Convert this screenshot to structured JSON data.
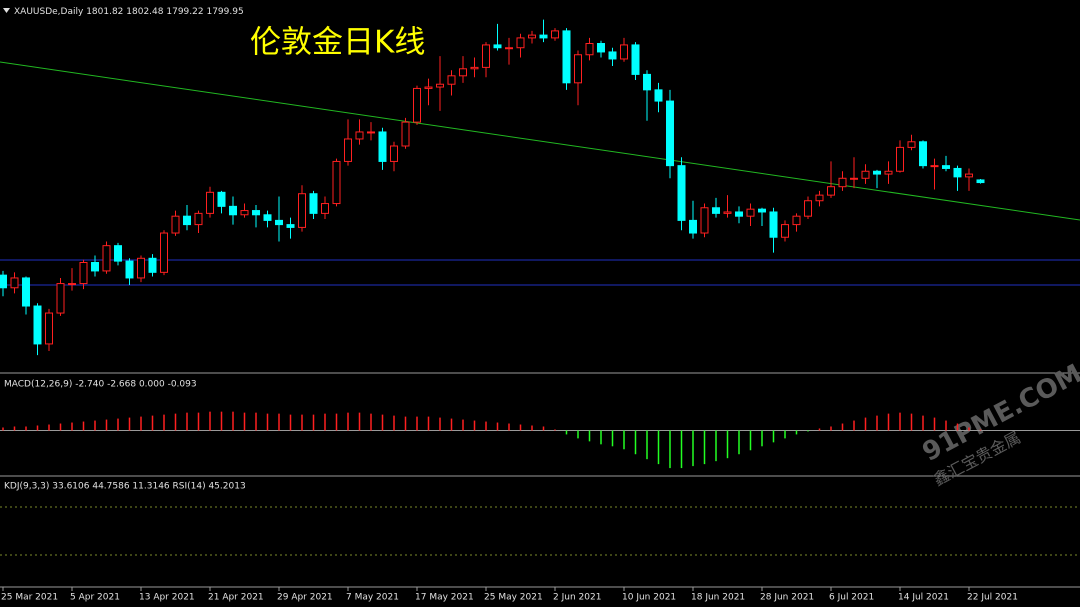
{
  "chart_data": [
    {
      "type": "candlestick",
      "title": "伦敦金日K线",
      "symbol": "XAUUSDe,Daily",
      "categories": [
        "25 Mar 2021",
        null,
        null,
        null,
        null,
        null,
        "5 Apr 2021",
        null,
        null,
        null,
        null,
        null,
        "13 Apr 2021",
        null,
        null,
        null,
        null,
        null,
        "21 Apr 2021",
        null,
        null,
        null,
        null,
        null,
        "29 Apr 2021",
        null,
        null,
        null,
        null,
        null,
        "7 May 2021",
        null,
        null,
        null,
        null,
        null,
        "17 May 2021",
        null,
        null,
        null,
        null,
        null,
        "25 May 2021",
        null,
        null,
        null,
        null,
        null,
        "2 Jun 2021",
        null,
        null,
        null,
        null,
        null,
        "10 Jun 2021",
        null,
        null,
        null,
        null,
        null,
        "18 Jun 2021",
        null,
        null,
        null,
        null,
        null,
        "28 Jun 2021",
        null,
        null,
        null,
        null,
        null,
        "6 Jul 2021",
        null,
        null,
        null,
        null,
        null,
        "14 Jul 2021",
        null,
        null,
        null,
        null,
        null,
        "22 Jul 2021",
        null
      ],
      "open": [
        1734,
        1725,
        1732,
        1712,
        1685,
        1707,
        1728,
        1728,
        1743,
        1737,
        1755,
        1744,
        1732,
        1746,
        1736,
        1764,
        1776,
        1770,
        1778,
        1793,
        1783,
        1777,
        1780,
        1777,
        1773,
        1770,
        1768,
        1792,
        1778,
        1785,
        1815,
        1831,
        1836,
        1836,
        1815,
        1826,
        1843,
        1867,
        1868,
        1870,
        1876,
        1881,
        1882,
        1898,
        1896,
        1896,
        1903,
        1905,
        1903,
        1908,
        1871,
        1891,
        1899,
        1893,
        1888,
        1898,
        1877,
        1866,
        1858,
        1812,
        1773,
        1764,
        1782,
        1778,
        1779,
        1776,
        1781,
        1779,
        1761,
        1770,
        1776,
        1787,
        1791,
        1797,
        1803,
        1803,
        1808,
        1806,
        1808,
        1825,
        1829,
        1812,
        1812,
        1810,
        1804,
        1801.82
      ],
      "high": [
        1737,
        1736,
        1733,
        1714,
        1710,
        1732,
        1739,
        1745,
        1748,
        1758,
        1757,
        1746,
        1748,
        1749,
        1766,
        1780,
        1784,
        1780,
        1797,
        1794,
        1790,
        1785,
        1784,
        1780,
        1790,
        1775,
        1798,
        1794,
        1790,
        1817,
        1845,
        1845,
        1843,
        1839,
        1829,
        1846,
        1869,
        1874,
        1890,
        1880,
        1890,
        1889,
        1900,
        1913,
        1903,
        1906,
        1908,
        1916,
        1910,
        1910,
        1894,
        1903,
        1901,
        1896,
        1903,
        1900,
        1880,
        1871,
        1866,
        1818,
        1787,
        1785,
        1789,
        1791,
        1783,
        1785,
        1782,
        1782,
        1773,
        1778,
        1790,
        1794,
        1815,
        1808,
        1818,
        1813,
        1809,
        1815,
        1830,
        1834,
        1830,
        1817,
        1819,
        1812,
        1810,
        1802.48
      ],
      "low": [
        1719,
        1721,
        1706,
        1677,
        1680,
        1705,
        1723,
        1724,
        1733,
        1735,
        1741,
        1727,
        1729,
        1733,
        1734,
        1762,
        1766,
        1764,
        1775,
        1778,
        1770,
        1775,
        1768,
        1768,
        1758,
        1760,
        1765,
        1774,
        1774,
        1783,
        1812,
        1827,
        1830,
        1809,
        1808,
        1824,
        1841,
        1855,
        1851,
        1862,
        1871,
        1875,
        1875,
        1894,
        1884,
        1889,
        1899,
        1900,
        1901,
        1866,
        1855,
        1887,
        1889,
        1883,
        1886,
        1873,
        1844,
        1850,
        1803,
        1766,
        1760,
        1761,
        1775,
        1775,
        1771,
        1769,
        1769,
        1750,
        1758,
        1765,
        1774,
        1783,
        1789,
        1794,
        1796,
        1799,
        1796,
        1799,
        1807,
        1823,
        1810,
        1795,
        1808,
        1794,
        1794,
        1799.22
      ],
      "close": [
        1725,
        1732,
        1712,
        1685,
        1707,
        1728,
        1728,
        1743,
        1737,
        1755,
        1744,
        1732,
        1746,
        1736,
        1764,
        1776,
        1770,
        1778,
        1793,
        1783,
        1777,
        1780,
        1777,
        1773,
        1770,
        1768,
        1792,
        1778,
        1785,
        1815,
        1831,
        1836,
        1836,
        1815,
        1826,
        1843,
        1867,
        1868,
        1870,
        1876,
        1881,
        1882,
        1898,
        1896,
        1896,
        1903,
        1905,
        1903,
        1908,
        1871,
        1891,
        1899,
        1893,
        1888,
        1898,
        1877,
        1866,
        1858,
        1812,
        1773,
        1764,
        1782,
        1778,
        1779,
        1776,
        1781,
        1779,
        1761,
        1770,
        1776,
        1787,
        1791,
        1797,
        1803,
        1803,
        1808,
        1806,
        1808,
        1825,
        1829,
        1812,
        1812,
        1810,
        1804,
        1806,
        1799.95
      ],
      "ylim": [
        1665,
        1930
      ],
      "up_color": "#ff2020",
      "down_color": "#00ffff"
    },
    {
      "type": "bar",
      "label": "MACD(12,26,9) -2.740 -2.668 0.000 -0.093",
      "values": [
        3,
        4,
        4,
        5,
        6,
        7,
        8,
        9,
        10,
        11,
        12,
        13,
        14,
        15,
        16,
        17,
        18,
        18,
        19,
        19,
        19,
        18,
        18,
        17,
        17,
        16,
        16,
        16,
        17,
        17,
        18,
        18,
        17,
        16,
        15,
        14,
        14,
        14,
        13,
        12,
        11,
        10,
        9,
        8,
        7,
        6,
        5,
        4,
        1,
        -4,
        -8,
        -11,
        -14,
        -16,
        -19,
        -24,
        -29,
        -34,
        -38,
        -38,
        -36,
        -34,
        -31,
        -28,
        -24,
        -20,
        -16,
        -12,
        -8,
        -4,
        -1,
        2,
        4,
        7,
        10,
        13,
        15,
        17,
        18,
        17,
        15,
        13,
        10,
        7,
        3,
        1
      ],
      "ylim": [
        -46,
        54
      ],
      "up_color": "#ff2020",
      "down_color": "#22ff22"
    },
    {
      "type": "indicator",
      "label": "KDJ(9,3,3) 33.6106 44.7586 11.3146 RSI(14) 45.2013"
    }
  ],
  "watermark": {
    "site": "91PME.COM",
    "name": "鑫汇宝贵金属"
  }
}
